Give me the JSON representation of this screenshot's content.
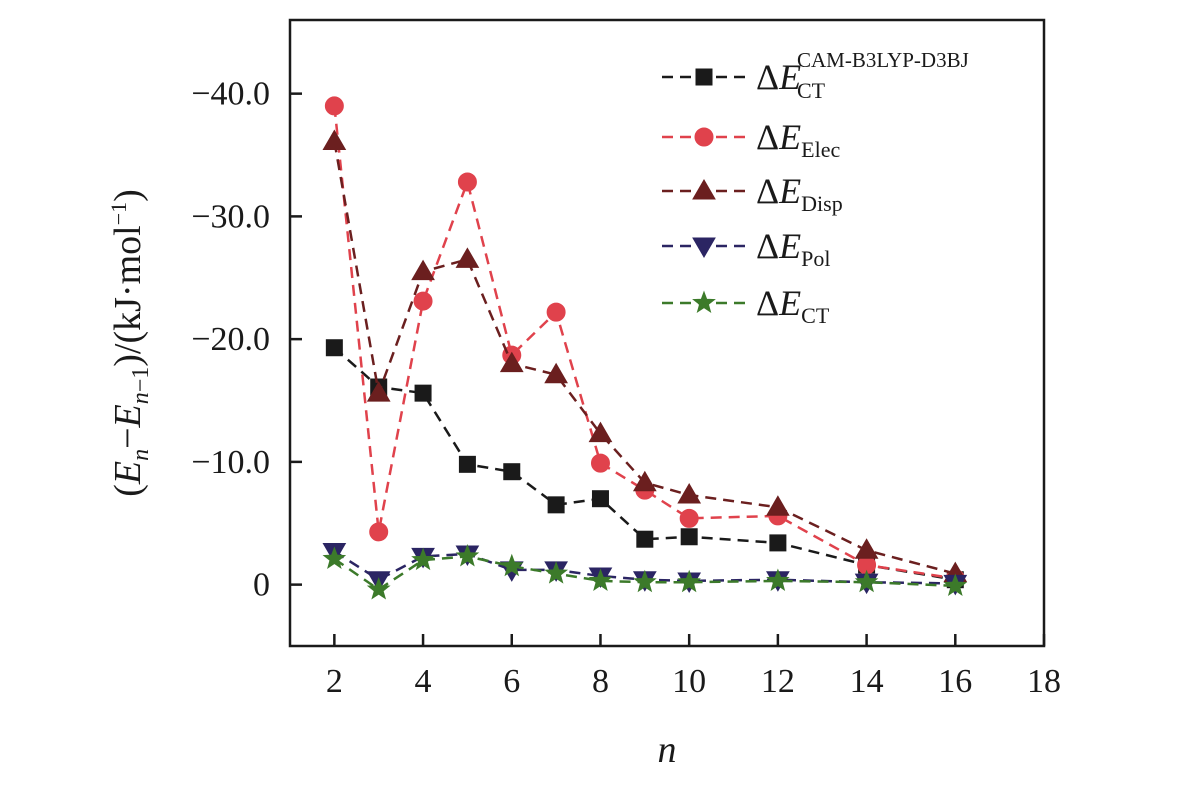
{
  "chart_data": {
    "type": "line",
    "title": "",
    "xlabel": "n",
    "ylabel": {
      "open": "(",
      "e1": "E",
      "e1_sub": "n",
      "minus": "−",
      "e2": "E",
      "e2_sub_n": "n",
      "e2_sub_rest": "−1",
      "mid": ")/(kJ·mol",
      "sup": "−1",
      "close": ")"
    },
    "xlim": [
      1,
      18
    ],
    "ylim": [
      5,
      -46
    ],
    "y_inverted": true,
    "xticks": [
      2,
      4,
      6,
      8,
      10,
      12,
      14,
      16,
      18
    ],
    "xtick_labels": [
      "2",
      "4",
      "6",
      "8",
      "10",
      "12",
      "14",
      "16",
      "18"
    ],
    "yticks": [
      0,
      -10,
      -20,
      -30,
      -40
    ],
    "ytick_labels": [
      "0",
      "−10.0",
      "−20.0",
      "−30.0",
      "−40.0"
    ],
    "legend_position": "top-right",
    "series": [
      {
        "key": "cam",
        "name_parts": [
          "ΔE",
          "CT",
          "CAM-B3LYP-D3BJ"
        ],
        "marker": "square",
        "color": "#1a1a1a",
        "x": [
          2,
          3,
          4,
          5,
          6,
          7,
          8,
          9,
          10,
          12,
          14,
          16
        ],
        "y": [
          -19.3,
          -16.1,
          -15.6,
          -9.8,
          -9.2,
          -6.5,
          -7.0,
          -3.7,
          -3.9,
          -3.4,
          -1.6,
          -0.4
        ]
      },
      {
        "key": "elec",
        "name_parts": [
          "ΔE",
          "Elec",
          ""
        ],
        "marker": "circle",
        "color": "#e0424c",
        "x": [
          2,
          3,
          4,
          5,
          6,
          7,
          8,
          9,
          10,
          12,
          14,
          16
        ],
        "y": [
          -39.0,
          -4.3,
          -23.1,
          -32.8,
          -18.7,
          -22.2,
          -9.9,
          -7.7,
          -5.4,
          -5.6,
          -1.6,
          -0.5
        ]
      },
      {
        "key": "disp",
        "name_parts": [
          "ΔE",
          "Disp",
          ""
        ],
        "marker": "triangle-up",
        "color": "#6b1f1f",
        "x": [
          2,
          3,
          4,
          5,
          6,
          7,
          8,
          9,
          10,
          12,
          14,
          16
        ],
        "y": [
          -36.1,
          -15.6,
          -25.5,
          -26.5,
          -18.0,
          -17.1,
          -12.3,
          -8.3,
          -7.3,
          -6.3,
          -2.8,
          -0.9
        ]
      },
      {
        "key": "pol",
        "name_parts": [
          "ΔE",
          "Pol",
          ""
        ],
        "marker": "triangle-down",
        "color": "#2b2563",
        "x": [
          2,
          3,
          4,
          5,
          6,
          7,
          8,
          9,
          10,
          12,
          14,
          16
        ],
        "y": [
          -2.7,
          -0.4,
          -2.3,
          -2.5,
          -1.2,
          -1.2,
          -0.7,
          -0.4,
          -0.3,
          -0.4,
          -0.2,
          -0.1
        ]
      },
      {
        "key": "ct",
        "name_parts": [
          "ΔE",
          "CT",
          ""
        ],
        "marker": "star",
        "color": "#3c7a2a",
        "x": [
          2,
          3,
          4,
          5,
          6,
          7,
          8,
          9,
          10,
          12,
          14,
          16
        ],
        "y": [
          -2.1,
          0.4,
          -2.0,
          -2.3,
          -1.5,
          -0.9,
          -0.3,
          -0.2,
          -0.2,
          -0.3,
          -0.2,
          0.1
        ]
      }
    ]
  }
}
